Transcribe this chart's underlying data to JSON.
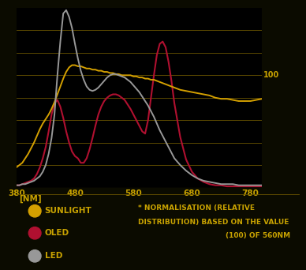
{
  "background_color": "#0b0b00",
  "plot_bg_color": "#000000",
  "grid_color": "#6b5500",
  "text_color": "#c8a200",
  "axis_label_color": "#c8a200",
  "xlabel": "[NM]",
  "xlim": [
    380,
    800
  ],
  "ylim": [
    0,
    160
  ],
  "xticks": [
    380,
    480,
    580,
    680,
    780
  ],
  "sunlight_color": "#d4a000",
  "oled_color": "#b01030",
  "led_color": "#989898",
  "legend_sunlight": "SUNLIGHT",
  "legend_oled": "OLED",
  "legend_led": "LED",
  "note_line1": "* NORMALISATION (RELATIVE",
  "note_line2": "DISTRIBUTION) BASED ON THE VALUE",
  "note_line3": "(100) OF 560NM",
  "sunlight_x": [
    380,
    385,
    390,
    395,
    400,
    405,
    410,
    415,
    420,
    425,
    430,
    435,
    440,
    445,
    450,
    455,
    460,
    465,
    470,
    475,
    480,
    485,
    490,
    495,
    500,
    505,
    510,
    515,
    520,
    525,
    530,
    535,
    540,
    545,
    550,
    555,
    560,
    565,
    570,
    575,
    580,
    585,
    590,
    595,
    600,
    605,
    610,
    615,
    620,
    625,
    630,
    635,
    640,
    645,
    650,
    660,
    670,
    680,
    690,
    700,
    710,
    720,
    730,
    740,
    750,
    760,
    770,
    780,
    790,
    800
  ],
  "sunlight_y": [
    18,
    20,
    22,
    26,
    30,
    35,
    40,
    46,
    52,
    57,
    61,
    65,
    70,
    76,
    83,
    90,
    97,
    103,
    107,
    109,
    109,
    108,
    108,
    107,
    106,
    106,
    105,
    105,
    104,
    104,
    103,
    103,
    102,
    102,
    101,
    101,
    100,
    100,
    100,
    100,
    99,
    99,
    98,
    98,
    97,
    97,
    96,
    96,
    95,
    94,
    93,
    92,
    91,
    90,
    89,
    87,
    86,
    85,
    84,
    83,
    82,
    80,
    79,
    79,
    78,
    77,
    77,
    77,
    78,
    79
  ],
  "oled_x": [
    380,
    385,
    390,
    395,
    400,
    405,
    410,
    415,
    420,
    425,
    430,
    435,
    440,
    445,
    450,
    455,
    460,
    465,
    470,
    475,
    480,
    485,
    490,
    495,
    500,
    505,
    510,
    515,
    520,
    525,
    530,
    535,
    540,
    545,
    550,
    555,
    560,
    565,
    570,
    575,
    580,
    585,
    590,
    595,
    600,
    605,
    610,
    615,
    620,
    625,
    630,
    635,
    640,
    645,
    650,
    660,
    670,
    680,
    690,
    700,
    710,
    720,
    730,
    740,
    750,
    760,
    770,
    780,
    790,
    800
  ],
  "oled_y": [
    2,
    2,
    3,
    4,
    5,
    6,
    8,
    12,
    18,
    26,
    36,
    50,
    65,
    75,
    78,
    72,
    62,
    50,
    40,
    32,
    28,
    26,
    22,
    22,
    26,
    34,
    44,
    55,
    65,
    72,
    77,
    80,
    82,
    83,
    83,
    82,
    80,
    78,
    74,
    70,
    65,
    60,
    55,
    50,
    48,
    60,
    80,
    100,
    118,
    128,
    130,
    125,
    112,
    95,
    75,
    45,
    25,
    14,
    8,
    5,
    3,
    2,
    2,
    1,
    1,
    1,
    1,
    1,
    1,
    1
  ],
  "led_x": [
    380,
    385,
    390,
    395,
    400,
    405,
    410,
    415,
    420,
    425,
    430,
    435,
    440,
    445,
    450,
    455,
    460,
    465,
    470,
    475,
    480,
    485,
    490,
    495,
    500,
    505,
    510,
    515,
    520,
    525,
    530,
    535,
    540,
    545,
    550,
    555,
    560,
    565,
    570,
    575,
    580,
    585,
    590,
    595,
    600,
    605,
    610,
    615,
    620,
    625,
    630,
    635,
    640,
    645,
    650,
    660,
    670,
    680,
    690,
    700,
    710,
    720,
    730,
    740,
    750,
    760,
    770,
    780,
    790,
    800
  ],
  "led_y": [
    2,
    2,
    3,
    3,
    4,
    5,
    6,
    8,
    10,
    14,
    20,
    30,
    44,
    65,
    100,
    130,
    155,
    158,
    152,
    142,
    128,
    115,
    104,
    96,
    90,
    87,
    86,
    87,
    89,
    92,
    95,
    98,
    100,
    101,
    101,
    100,
    99,
    98,
    96,
    94,
    91,
    88,
    85,
    81,
    77,
    73,
    68,
    63,
    57,
    51,
    46,
    41,
    36,
    31,
    26,
    20,
    15,
    11,
    8,
    6,
    5,
    4,
    3,
    3,
    3,
    2,
    2,
    2,
    2,
    2
  ]
}
